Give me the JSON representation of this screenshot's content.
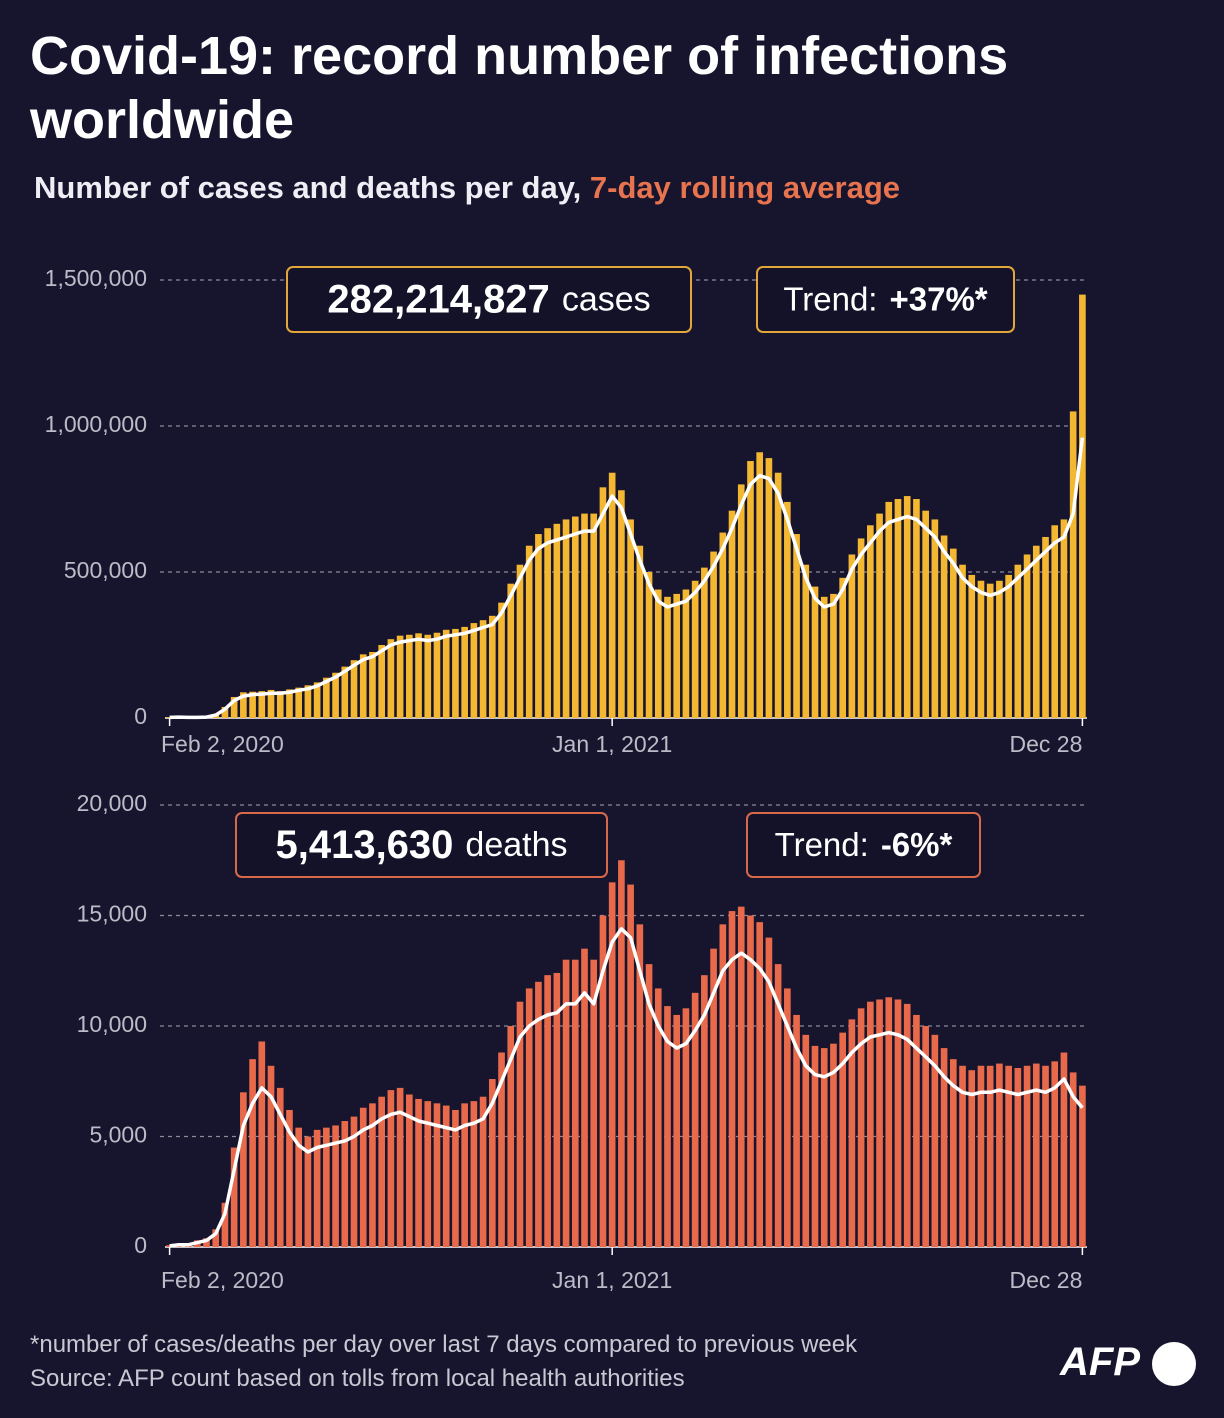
{
  "title": "Covid-19: record number of infections worldwide",
  "subtitle": "Number of cases and deaths per day,",
  "subtitle_highlight": "7-day rolling average",
  "chart_data": [
    {
      "type": "bar",
      "categories": [
        "Feb 2, 2020",
        null,
        null,
        null,
        null,
        null,
        null,
        null,
        null,
        null,
        null,
        null,
        null,
        null,
        null,
        null,
        null,
        null,
        null,
        null,
        null,
        null,
        null,
        null,
        null,
        null,
        null,
        null,
        null,
        null,
        null,
        null,
        null,
        null,
        null,
        null,
        null,
        null,
        null,
        null,
        null,
        null,
        null,
        null,
        null,
        null,
        null,
        null,
        "Jan 1, 2021",
        null,
        null,
        null,
        null,
        null,
        null,
        null,
        null,
        null,
        null,
        null,
        null,
        null,
        null,
        null,
        null,
        null,
        null,
        null,
        null,
        null,
        null,
        null,
        null,
        null,
        null,
        null,
        null,
        null,
        null,
        null,
        null,
        null,
        null,
        null,
        null,
        null,
        null,
        null,
        null,
        null,
        null,
        null,
        null,
        null,
        null,
        null,
        null,
        null,
        null,
        "Dec 28"
      ],
      "series": [
        {
          "color": "#f4b731",
          "values": [
            3000,
            4000,
            2000,
            3000,
            5000,
            14000,
            38000,
            72000,
            88000,
            90000,
            92000,
            96000,
            92000,
            98000,
            104000,
            112000,
            122000,
            138000,
            155000,
            176000,
            198000,
            218000,
            226000,
            250000,
            270000,
            282000,
            285000,
            290000,
            285000,
            292000,
            302000,
            305000,
            312000,
            325000,
            335000,
            350000,
            395000,
            460000,
            525000,
            590000,
            630000,
            650000,
            665000,
            680000,
            690000,
            700000,
            700000,
            790000,
            840000,
            780000,
            680000,
            590000,
            500000,
            440000,
            415000,
            425000,
            440000,
            470000,
            515000,
            570000,
            635000,
            710000,
            800000,
            880000,
            910000,
            890000,
            840000,
            740000,
            630000,
            525000,
            450000,
            415000,
            425000,
            480000,
            560000,
            615000,
            660000,
            700000,
            740000,
            750000,
            760000,
            750000,
            710000,
            680000,
            625000,
            580000,
            525000,
            490000,
            470000,
            460000,
            470000,
            490000,
            525000,
            560000,
            590000,
            620000,
            660000,
            680000,
            1050000,
            1450000
          ]
        },
        {
          "type": "line",
          "color": "#ffffff",
          "values": [
            2000,
            3000,
            2000,
            2000,
            3000,
            10000,
            30000,
            60000,
            75000,
            80000,
            82000,
            85000,
            85000,
            88000,
            95000,
            100000,
            110000,
            125000,
            140000,
            160000,
            180000,
            200000,
            210000,
            230000,
            250000,
            260000,
            265000,
            270000,
            265000,
            270000,
            280000,
            285000,
            290000,
            300000,
            310000,
            320000,
            360000,
            420000,
            480000,
            540000,
            580000,
            600000,
            610000,
            620000,
            630000,
            640000,
            640000,
            700000,
            760000,
            720000,
            630000,
            540000,
            460000,
            400000,
            380000,
            390000,
            400000,
            430000,
            470000,
            520000,
            580000,
            650000,
            730000,
            800000,
            830000,
            820000,
            770000,
            680000,
            580000,
            480000,
            410000,
            380000,
            390000,
            440000,
            510000,
            560000,
            600000,
            640000,
            670000,
            680000,
            690000,
            680000,
            650000,
            620000,
            570000,
            530000,
            480000,
            450000,
            430000,
            420000,
            430000,
            450000,
            480000,
            510000,
            540000,
            570000,
            600000,
            620000,
            700000,
            960000
          ]
        }
      ],
      "ylim": [
        0,
        1500000
      ],
      "yticks": [
        0,
        {
          "value": 500000,
          "label": "500,000"
        },
        {
          "value": 1000000,
          "label": "1,000,000"
        },
        {
          "value": 1500000,
          "label": "1,500,000"
        }
      ],
      "grid": true,
      "box_color": "#e3a63a",
      "annotations": {
        "total": "282,214,827",
        "unit": "cases",
        "trend_label": "Trend:",
        "trend": "+37%*"
      }
    },
    {
      "type": "bar",
      "categories": [
        "Feb 2, 2020",
        null,
        null,
        null,
        null,
        null,
        null,
        null,
        null,
        null,
        null,
        null,
        null,
        null,
        null,
        null,
        null,
        null,
        null,
        null,
        null,
        null,
        null,
        null,
        null,
        null,
        null,
        null,
        null,
        null,
        null,
        null,
        null,
        null,
        null,
        null,
        null,
        null,
        null,
        null,
        null,
        null,
        null,
        null,
        null,
        null,
        null,
        null,
        "Jan 1, 2021",
        null,
        null,
        null,
        null,
        null,
        null,
        null,
        null,
        null,
        null,
        null,
        null,
        null,
        null,
        null,
        null,
        null,
        null,
        null,
        null,
        null,
        null,
        null,
        null,
        null,
        null,
        null,
        null,
        null,
        null,
        null,
        null,
        null,
        null,
        null,
        null,
        null,
        null,
        null,
        null,
        null,
        null,
        null,
        null,
        null,
        null,
        null,
        null,
        null,
        null,
        "Dec 28"
      ],
      "series": [
        {
          "color": "#e96a4b",
          "values": [
            80,
            150,
            150,
            300,
            400,
            800,
            2000,
            4500,
            7000,
            8500,
            9300,
            8200,
            7200,
            6200,
            5400,
            5000,
            5300,
            5400,
            5500,
            5700,
            5900,
            6300,
            6500,
            6800,
            7100,
            7200,
            6900,
            6700,
            6600,
            6500,
            6400,
            6200,
            6500,
            6600,
            6800,
            7600,
            8800,
            10000,
            11100,
            11700,
            12000,
            12300,
            12400,
            13000,
            13000,
            13500,
            13000,
            15000,
            16500,
            17500,
            16400,
            14600,
            12800,
            11700,
            10900,
            10500,
            10800,
            11500,
            12300,
            13500,
            14600,
            15200,
            15400,
            15000,
            14700,
            14000,
            12800,
            11700,
            10500,
            9600,
            9100,
            9000,
            9200,
            9700,
            10300,
            10800,
            11100,
            11200,
            11300,
            11200,
            11000,
            10500,
            10000,
            9600,
            9000,
            8500,
            8200,
            8000,
            8200,
            8200,
            8300,
            8200,
            8100,
            8200,
            8300,
            8200,
            8400,
            8800,
            7900,
            7300
          ]
        },
        {
          "type": "line",
          "color": "#ffffff",
          "values": [
            50,
            100,
            100,
            200,
            300,
            600,
            1500,
            3500,
            5500,
            6500,
            7200,
            6800,
            6000,
            5200,
            4600,
            4300,
            4500,
            4600,
            4700,
            4800,
            5000,
            5300,
            5500,
            5800,
            6000,
            6100,
            5900,
            5700,
            5600,
            5500,
            5400,
            5300,
            5500,
            5600,
            5800,
            6500,
            7500,
            8500,
            9500,
            10000,
            10300,
            10500,
            10600,
            11000,
            11000,
            11500,
            11000,
            12500,
            13800,
            14400,
            14000,
            12500,
            11000,
            10000,
            9300,
            9000,
            9200,
            9800,
            10500,
            11500,
            12500,
            13000,
            13300,
            13000,
            12600,
            12000,
            11000,
            10000,
            9000,
            8200,
            7800,
            7700,
            7900,
            8300,
            8800,
            9200,
            9500,
            9600,
            9700,
            9600,
            9400,
            9000,
            8600,
            8200,
            7700,
            7300,
            7000,
            6900,
            7000,
            7000,
            7100,
            7000,
            6900,
            7000,
            7100,
            7000,
            7200,
            7600,
            6800,
            6300
          ]
        }
      ],
      "ylim": [
        0,
        20000
      ],
      "yticks": [
        0,
        {
          "value": 5000,
          "label": "5,000"
        },
        {
          "value": 10000,
          "label": "10,000"
        },
        {
          "value": 15000,
          "label": "15,000"
        },
        {
          "value": 20000,
          "label": "20,000"
        }
      ],
      "grid": true,
      "box_color": "#d9684b",
      "annotations": {
        "total": "5,413,630",
        "unit": "deaths",
        "trend_label": "Trend:",
        "trend": "-6%*"
      }
    }
  ],
  "footnote": "*number of cases/deaths per day over last 7 days compared to previous week",
  "source": "Source: AFP count based on tolls from local health authorities",
  "logo": "AFP"
}
